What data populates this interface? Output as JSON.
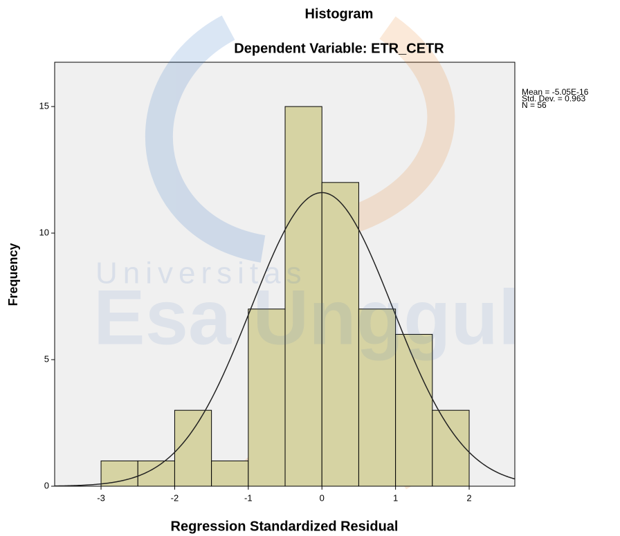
{
  "chart_data": {
    "type": "histogram",
    "title": "Histogram",
    "subtitle": "Dependent Variable: ETR_CETR",
    "x_label": "Regression Standardized Residual",
    "y_label": "Frequency",
    "bins": [
      -3,
      -2.5,
      -2,
      -1.5,
      -1,
      -0.5,
      0,
      0.5,
      1,
      1.5,
      2
    ],
    "values": [
      1,
      1,
      3,
      1,
      7,
      15,
      12,
      7,
      6,
      3
    ],
    "color": "#d6d3a3",
    "xlim": [
      -3.63,
      2.62
    ],
    "xticks": [
      -3,
      -2,
      -1,
      0,
      1,
      2
    ],
    "ylim": [
      0,
      16.75
    ],
    "yticks": [
      0,
      5,
      10,
      15
    ],
    "stats_labels": [
      "Mean = -5.05E-16",
      "Std. Dev. = 0.963",
      "N = 56"
    ],
    "normal_curve": {
      "mean": -5.05e-16,
      "sd": 0.963,
      "n": 56
    },
    "watermark": [
      "Universitas",
      "Esa Unggul"
    ]
  }
}
